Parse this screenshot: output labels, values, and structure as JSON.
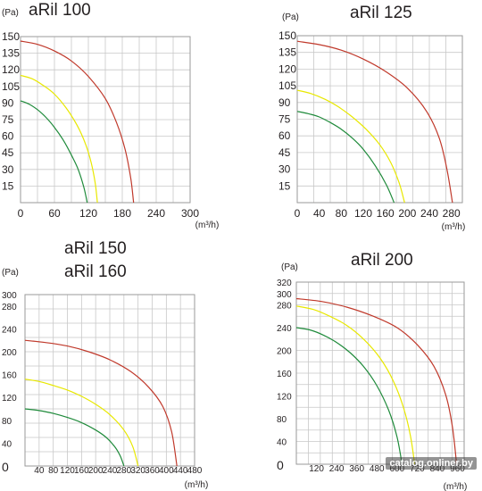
{
  "chart_data": [
    {
      "type": "line",
      "title_lines": [
        "aRil 100"
      ],
      "ylabel": "(Pa)",
      "xlabel": "(m³/h)",
      "xlim": [
        0,
        300
      ],
      "ylim": [
        0,
        150
      ],
      "xticks": [
        0,
        60,
        120,
        180,
        240,
        300
      ],
      "yticks": [
        15,
        30,
        45,
        60,
        75,
        90,
        105,
        120,
        135,
        150
      ],
      "y_zero_label": false,
      "grid": true,
      "series": [
        {
          "color": "#c0392b",
          "x": [
            0,
            30,
            60,
            90,
            120,
            150,
            170,
            185,
            195,
            200
          ],
          "y": [
            146,
            143,
            137,
            128,
            114,
            94,
            72,
            48,
            22,
            0
          ]
        },
        {
          "color": "#e8e800",
          "x": [
            0,
            20,
            40,
            60,
            80,
            100,
            115,
            125,
            132,
            136
          ],
          "y": [
            115,
            112,
            106,
            98,
            86,
            70,
            53,
            36,
            18,
            0
          ]
        },
        {
          "color": "#1e8a3a",
          "x": [
            0,
            15,
            30,
            45,
            60,
            75,
            90,
            102,
            112,
            118
          ],
          "y": [
            92,
            89,
            84,
            77,
            68,
            57,
            43,
            30,
            14,
            0
          ]
        }
      ]
    },
    {
      "type": "line",
      "title_lines": [
        "aRil 125"
      ],
      "ylabel": "(Pa)",
      "xlabel": "(m³/h)",
      "xlim": [
        0,
        300
      ],
      "ylim": [
        0,
        150
      ],
      "xticks": [
        0,
        40,
        80,
        120,
        160,
        200,
        240,
        280
      ],
      "yticks": [
        15,
        30,
        45,
        60,
        75,
        90,
        105,
        120,
        135,
        150
      ],
      "y_zero_label": false,
      "grid": true,
      "series": [
        {
          "color": "#c0392b",
          "x": [
            0,
            40,
            80,
            120,
            160,
            200,
            235,
            258,
            272,
            282
          ],
          "y": [
            145,
            142,
            137,
            129,
            118,
            103,
            82,
            58,
            30,
            0
          ]
        },
        {
          "color": "#e8e800",
          "x": [
            0,
            25,
            50,
            75,
            100,
            125,
            150,
            170,
            185,
            195
          ],
          "y": [
            101,
            98,
            93,
            86,
            77,
            66,
            52,
            36,
            18,
            0
          ]
        },
        {
          "color": "#1e8a3a",
          "x": [
            0,
            20,
            40,
            60,
            80,
            100,
            120,
            142,
            162,
            176
          ],
          "y": [
            82,
            80,
            77,
            72,
            66,
            58,
            48,
            33,
            16,
            0
          ]
        }
      ]
    },
    {
      "type": "line",
      "title_lines": [
        "aRil 150",
        "aRil 160"
      ],
      "ylabel": "(Pa)",
      "xlabel": "(m³/h)",
      "xlim": [
        0,
        480
      ],
      "ylim": [
        0,
        300
      ],
      "xticks": [
        0,
        40,
        80,
        120,
        160,
        200,
        240,
        280,
        320,
        360,
        400,
        440,
        480
      ],
      "yticks": [
        0,
        40,
        80,
        120,
        160,
        200,
        240,
        280,
        300
      ],
      "y_zero_label": true,
      "grid": true,
      "series": [
        {
          "color": "#c0392b",
          "x": [
            0,
            60,
            120,
            180,
            240,
            300,
            350,
            390,
            415,
            430
          ],
          "y": [
            220,
            216,
            210,
            200,
            186,
            165,
            138,
            104,
            60,
            0
          ]
        },
        {
          "color": "#e8e800",
          "x": [
            0,
            40,
            80,
            120,
            160,
            200,
            240,
            280,
            305,
            320
          ],
          "y": [
            152,
            148,
            141,
            133,
            122,
            108,
            90,
            63,
            34,
            0
          ]
        },
        {
          "color": "#1e8a3a",
          "x": [
            0,
            40,
            80,
            120,
            160,
            200,
            230,
            255,
            270,
            280
          ],
          "y": [
            100,
            97,
            92,
            85,
            76,
            63,
            50,
            33,
            17,
            0
          ]
        }
      ]
    },
    {
      "type": "line",
      "title_lines": [
        "aRil 200"
      ],
      "ylabel": "(Pa)",
      "xlabel": "(m³/h)",
      "xlim": [
        0,
        1000
      ],
      "ylim": [
        0,
        320
      ],
      "xticks": [
        0,
        120,
        240,
        360,
        480,
        600,
        720,
        840,
        960
      ],
      "yticks": [
        0,
        40,
        80,
        120,
        160,
        200,
        240,
        280,
        300,
        320
      ],
      "y_zero_label": true,
      "grid": true,
      "series": [
        {
          "color": "#c0392b",
          "x": [
            0,
            150,
            300,
            450,
            600,
            720,
            820,
            890,
            930,
            955
          ],
          "y": [
            291,
            286,
            276,
            261,
            240,
            210,
            172,
            122,
            66,
            0
          ]
        },
        {
          "color": "#e8e800",
          "x": [
            0,
            100,
            200,
            300,
            400,
            500,
            580,
            640,
            680,
            705
          ],
          "y": [
            278,
            272,
            260,
            244,
            220,
            186,
            145,
            98,
            50,
            0
          ]
        },
        {
          "color": "#1e8a3a",
          "x": [
            0,
            80,
            160,
            240,
            320,
            400,
            480,
            550,
            600,
            630
          ],
          "y": [
            240,
            236,
            227,
            214,
            196,
            172,
            138,
            95,
            48,
            0
          ]
        }
      ]
    }
  ],
  "watermark": "catalog.onliner.by"
}
